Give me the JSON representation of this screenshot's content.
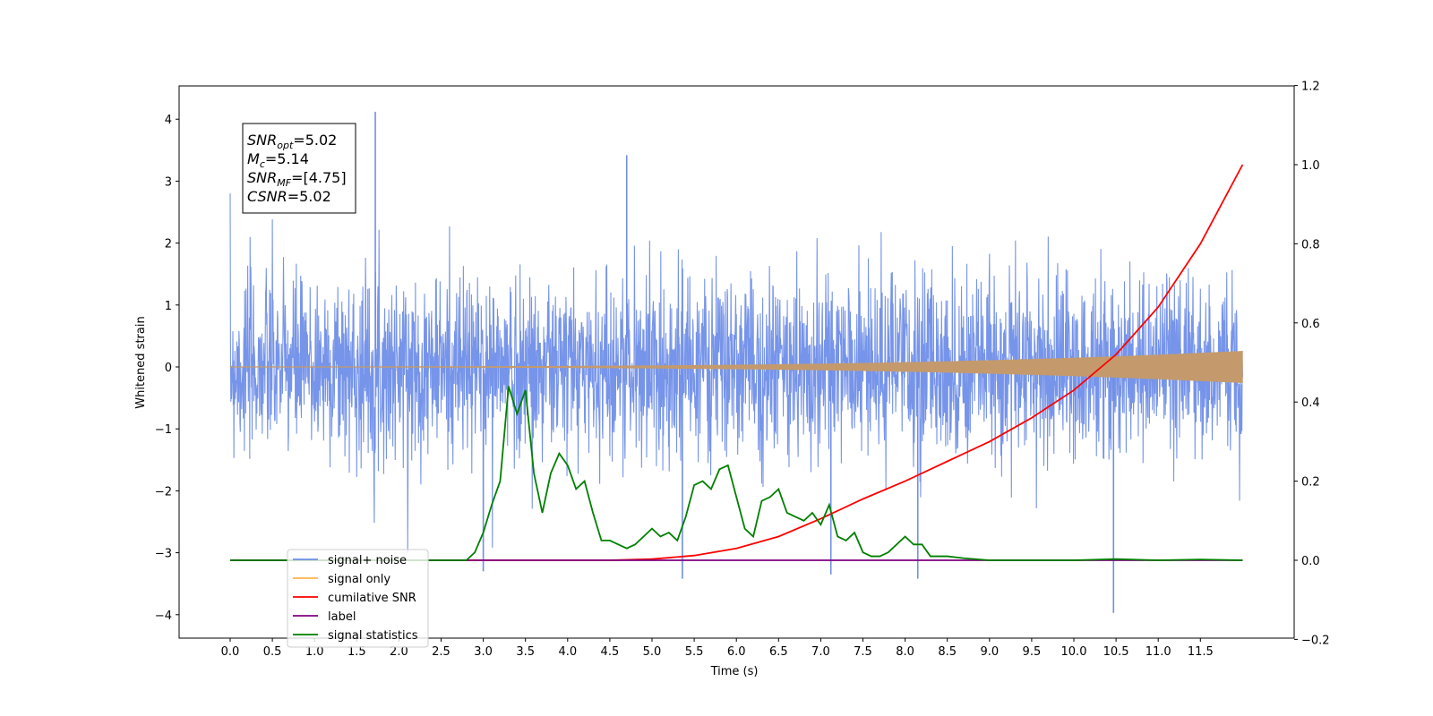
{
  "chart_data": {
    "type": "line",
    "xlabel": "Time (s)",
    "ylabel": "Whitened strain",
    "xlim": [
      -0.6,
      12.6
    ],
    "ylim": [
      -4.4,
      4.5
    ],
    "y2lim": [
      -0.2,
      1.2
    ],
    "x_ticks": [
      "0.0",
      "0.5",
      "1.0",
      "1.5",
      "2.0",
      "2.5",
      "3.0",
      "3.5",
      "4.0",
      "4.5",
      "5.0",
      "5.5",
      "6.0",
      "6.5",
      "7.0",
      "7.5",
      "8.0",
      "8.5",
      "9.0",
      "9.5",
      "10.0",
      "10.5",
      "11.0",
      "11.5"
    ],
    "y_ticks": [
      "4",
      "3",
      "2",
      "1",
      "0",
      "−1",
      "−2",
      "−3",
      "−4"
    ],
    "y2_ticks": [
      "1.2",
      "1.0",
      "0.8",
      "0.6",
      "0.4",
      "0.2",
      "0.0",
      "−0.2"
    ],
    "annotation": {
      "lines": [
        {
          "base": "SNR",
          "sub": "opt",
          "rest": "=5.02"
        },
        {
          "base": "M",
          "sub": "c",
          "rest": "=5.14"
        },
        {
          "base": "SNR",
          "sub": "MF",
          "rest": "=[4.75]"
        },
        {
          "base": "CSNR",
          "sub": "",
          "rest": "=5.02"
        }
      ]
    },
    "legend": {
      "placement": "lower-left",
      "entries": [
        {
          "label": "signal+ noise",
          "color": "#6f8ee8"
        },
        {
          "label": "signal only",
          "color": "#ffb347"
        },
        {
          "label": "cumilative SNR",
          "color": "#ff0000"
        },
        {
          "label": "label",
          "color": "#800080"
        },
        {
          "label": "signal statistics",
          "color": "#008000"
        }
      ]
    },
    "series": [
      {
        "name": "signal+ noise",
        "axis": "left",
        "color": "#6f8ee8",
        "x_range": [
          0.0,
          12.0
        ],
        "envelope_sigma": 0.72,
        "spikes": [
          [
            1.72,
            4.12
          ],
          [
            4.7,
            3.42
          ],
          [
            3.0,
            -3.3
          ],
          [
            5.36,
            -3.42
          ],
          [
            10.47,
            -3.97
          ],
          [
            7.12,
            -3.35
          ],
          [
            8.15,
            -3.42
          ]
        ]
      },
      {
        "name": "signal only",
        "axis": "left",
        "color": "#c49a6c",
        "x_range": [
          0.0,
          12.0
        ],
        "amplitude_end": 0.25
      },
      {
        "name": "cumilative SNR",
        "axis": "right",
        "color": "#ff0000",
        "x": [
          0.0,
          4.5,
          5.0,
          5.5,
          6.0,
          6.5,
          7.0,
          7.5,
          8.0,
          8.5,
          9.0,
          9.5,
          10.0,
          10.5,
          11.0,
          11.5,
          12.0
        ],
        "y": [
          0.0,
          0.0,
          0.003,
          0.012,
          0.03,
          0.06,
          0.105,
          0.155,
          0.2,
          0.25,
          0.3,
          0.36,
          0.43,
          0.52,
          0.64,
          0.8,
          1.0
        ]
      },
      {
        "name": "label",
        "axis": "right",
        "color": "#800080",
        "x": [
          0.0,
          12.0
        ],
        "y": [
          0.0,
          0.0
        ]
      },
      {
        "name": "signal statistics",
        "axis": "right",
        "color": "#008000",
        "x": [
          0.0,
          2.5,
          2.8,
          2.9,
          3.0,
          3.1,
          3.2,
          3.3,
          3.4,
          3.5,
          3.6,
          3.7,
          3.8,
          3.9,
          4.0,
          4.1,
          4.2,
          4.3,
          4.4,
          4.5,
          4.6,
          4.7,
          4.8,
          4.9,
          5.0,
          5.1,
          5.2,
          5.3,
          5.4,
          5.5,
          5.6,
          5.7,
          5.8,
          5.9,
          6.0,
          6.1,
          6.2,
          6.3,
          6.4,
          6.5,
          6.6,
          6.7,
          6.8,
          6.9,
          7.0,
          7.1,
          7.2,
          7.3,
          7.4,
          7.5,
          7.6,
          7.7,
          7.8,
          7.9,
          8.0,
          8.1,
          8.2,
          8.3,
          8.5,
          8.7,
          9.0,
          10.0,
          10.5,
          11.0,
          11.5,
          12.0
        ],
        "y": [
          0.0,
          0.0,
          0.0,
          0.02,
          0.07,
          0.14,
          0.2,
          0.44,
          0.37,
          0.43,
          0.22,
          0.12,
          0.22,
          0.27,
          0.24,
          0.18,
          0.2,
          0.12,
          0.05,
          0.05,
          0.04,
          0.03,
          0.04,
          0.06,
          0.08,
          0.06,
          0.07,
          0.05,
          0.11,
          0.19,
          0.2,
          0.18,
          0.23,
          0.24,
          0.16,
          0.08,
          0.06,
          0.15,
          0.16,
          0.18,
          0.12,
          0.11,
          0.1,
          0.12,
          0.09,
          0.14,
          0.06,
          0.05,
          0.07,
          0.02,
          0.01,
          0.01,
          0.02,
          0.04,
          0.06,
          0.04,
          0.04,
          0.01,
          0.01,
          0.005,
          0.0,
          0.0,
          0.003,
          0.0,
          0.002,
          0.0
        ]
      }
    ]
  }
}
